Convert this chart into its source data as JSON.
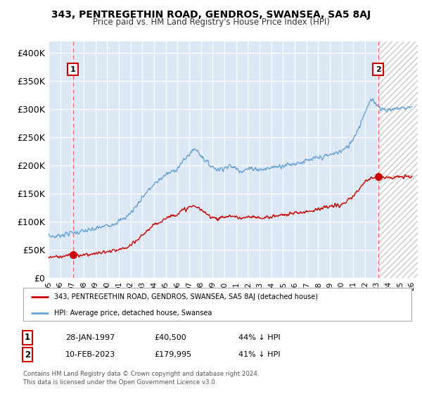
{
  "title": "343, PENTREGETHIN ROAD, GENDROS, SWANSEA, SA5 8AJ",
  "subtitle": "Price paid vs. HM Land Registry's House Price Index (HPI)",
  "ylim": [
    0,
    420000
  ],
  "yticks": [
    0,
    50000,
    100000,
    150000,
    200000,
    250000,
    300000,
    350000,
    400000
  ],
  "ytick_labels": [
    "£0",
    "£50K",
    "£100K",
    "£150K",
    "£200K",
    "£250K",
    "£300K",
    "£350K",
    "£400K"
  ],
  "bg_color": "#dce8f5",
  "hpi_color": "#6ba3d6",
  "price_color": "#cc0000",
  "dashed_color": "#ff6666",
  "sale1_x": 1997.08,
  "sale1_price": 40500,
  "sale2_x": 2023.12,
  "sale2_price": 179995,
  "hatch_color": "#bbbbbb",
  "legend_line1": "343, PENTREGETHIN ROAD, GENDROS, SWANSEA, SA5 8AJ (detached house)",
  "legend_line2": "HPI: Average price, detached house, Swansea",
  "footer1": "Contains HM Land Registry data © Crown copyright and database right 2024.",
  "footer2": "This data is licensed under the Open Government Licence v3.0.",
  "table_row1": [
    "1",
    "28-JAN-1997",
    "£40,500",
    "44% ↓ HPI"
  ],
  "table_row2": [
    "2",
    "10-FEB-2023",
    "£179,995",
    "41% ↓ HPI"
  ]
}
